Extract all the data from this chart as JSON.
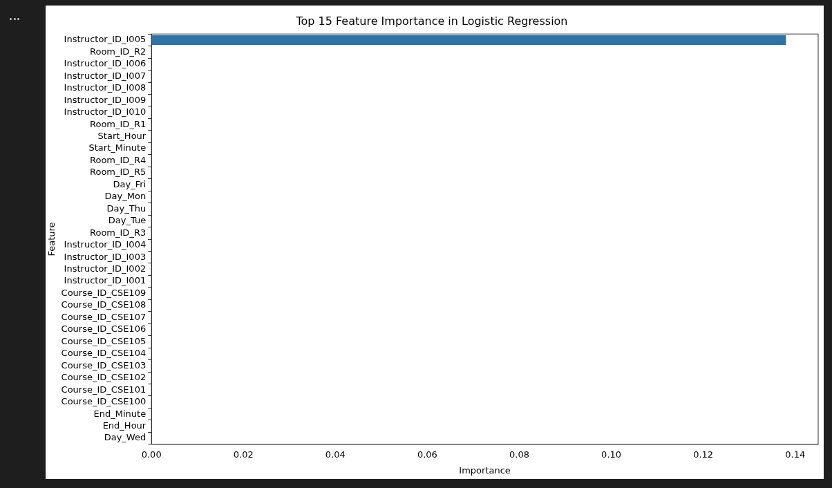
{
  "chart_data": {
    "type": "bar",
    "orientation": "horizontal",
    "title": "Top 15 Feature Importance in Logistic Regression",
    "xlabel": "Importance",
    "ylabel": "Feature",
    "categories": [
      "Instructor_ID_I005",
      "Room_ID_R2",
      "Instructor_ID_I006",
      "Instructor_ID_I007",
      "Instructor_ID_I008",
      "Instructor_ID_I009",
      "Instructor_ID_I010",
      "Room_ID_R1",
      "Start_Hour",
      "Start_Minute",
      "Room_ID_R4",
      "Room_ID_R5",
      "Day_Fri",
      "Day_Mon",
      "Day_Thu",
      "Day_Tue",
      "Room_ID_R3",
      "Instructor_ID_I004",
      "Instructor_ID_I003",
      "Instructor_ID_I002",
      "Instructor_ID_I001",
      "Course_ID_CSE109",
      "Course_ID_CSE108",
      "Course_ID_CSE107",
      "Course_ID_CSE106",
      "Course_ID_CSE105",
      "Course_ID_CSE104",
      "Course_ID_CSE103",
      "Course_ID_CSE102",
      "Course_ID_CSE101",
      "Course_ID_CSE100",
      "End_Minute",
      "End_Hour",
      "Day_Wed"
    ],
    "values": [
      0.138,
      0,
      0,
      0,
      0,
      0,
      0,
      0,
      0,
      0,
      0,
      0,
      0,
      0,
      0,
      0,
      0,
      0,
      0,
      0,
      0,
      0,
      0,
      0,
      0,
      0,
      0,
      0,
      0,
      0,
      0,
      0,
      0,
      0
    ],
    "color": "#2e73a6",
    "xlim": [
      0,
      0.145
    ],
    "xticks": [
      {
        "value": 0,
        "label": "0.00"
      },
      {
        "value": 0.02,
        "label": "0.02"
      },
      {
        "value": 0.04,
        "label": "0.04"
      },
      {
        "value": 0.06,
        "label": "0.06"
      },
      {
        "value": 0.08,
        "label": "0.08"
      },
      {
        "value": 0.1,
        "label": "0.10"
      },
      {
        "value": 0.12,
        "label": "0.12"
      },
      {
        "value": 0.14,
        "label": "0.14"
      }
    ],
    "grid": false,
    "legend": false
  }
}
